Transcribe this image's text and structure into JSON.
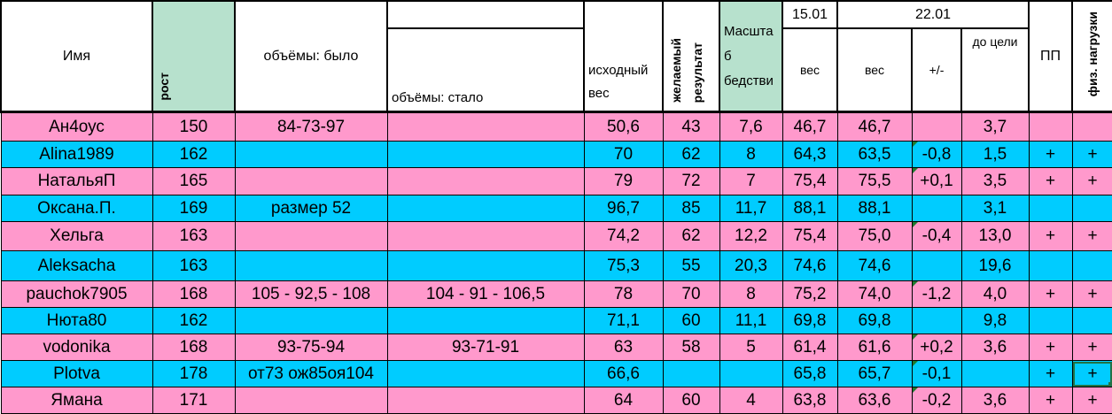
{
  "header": {
    "name": "Имя",
    "height": "рост",
    "volumes_before": "объёмы: было",
    "volumes_after": "объёмы: стало",
    "initial_weight_1": "исходный",
    "initial_weight_2": "вес",
    "desired": "желаемый",
    "result": "результат",
    "scale_1": "Масшта",
    "scale_2": "б",
    "scale_3": "бедстви",
    "date1": "15.01",
    "date2": "22.01",
    "weight1": "вес",
    "weight2": "вес",
    "diff": "+/-",
    "to_goal": "до цели",
    "pp": "ПП",
    "exercise": "физ. нагрузки"
  },
  "colors": {
    "pink": "#ff99cc",
    "blue": "#00ccff",
    "green": "#b7e1cd"
  },
  "rows": [
    {
      "name": "Ан4оус",
      "height": "150",
      "before": "84-73-97",
      "after": "",
      "initial": "50,6",
      "desired": "43",
      "scale": "7,6",
      "w1": "46,7",
      "w2": "46,7",
      "diff": "",
      "goal": "3,7",
      "pp": "",
      "ex": ""
    },
    {
      "name": "Alina1989",
      "height": "162",
      "before": "",
      "after": "",
      "initial": "70",
      "desired": "62",
      "scale": "8",
      "w1": "64,3",
      "w2": "63,5",
      "diff": "-0,8",
      "goal": "1,5",
      "pp": "+",
      "ex": "+"
    },
    {
      "name": "НатальяП",
      "height": "165",
      "before": "",
      "after": "",
      "initial": "79",
      "desired": "72",
      "scale": "7",
      "w1": "75,4",
      "w2": "75,5",
      "diff": "+0,1",
      "goal": "3,5",
      "pp": "+",
      "ex": "+"
    },
    {
      "name": "Оксана.П.",
      "height": "169",
      "before": "размер 52",
      "after": "",
      "initial": "96,7",
      "desired": "85",
      "scale": "11,7",
      "w1": "88,1",
      "w2": "88,1",
      "diff": "",
      "goal": "3,1",
      "pp": "",
      "ex": ""
    },
    {
      "name": "Хельга",
      "height": "163",
      "before": "",
      "after": "",
      "initial": "74,2",
      "desired": "62",
      "scale": "12,2",
      "w1": "75,4",
      "w2": "75,0",
      "diff": "-0,4",
      "goal": "13,0",
      "pp": "+",
      "ex": "+"
    },
    {
      "name": "Aleksacha",
      "height": "163",
      "before": "",
      "after": "",
      "initial": "75,3",
      "desired": "55",
      "scale": "20,3",
      "w1": "74,6",
      "w2": "74,6",
      "diff": "",
      "goal": "19,6",
      "pp": "",
      "ex": ""
    },
    {
      "name": "pauchok7905",
      "height": "168",
      "before": "105 - 92,5 - 108",
      "after": "104 - 91 - 106,5",
      "initial": "78",
      "desired": "70",
      "scale": "8",
      "w1": "75,2",
      "w2": "74,0",
      "diff": "-1,2",
      "goal": "4,0",
      "pp": "+",
      "ex": "+"
    },
    {
      "name": "Нюта80",
      "height": "162",
      "before": "",
      "after": "",
      "initial": "71,1",
      "desired": "60",
      "scale": "11,1",
      "w1": "69,8",
      "w2": "69,8",
      "diff": "",
      "goal": "9,8",
      "pp": "",
      "ex": ""
    },
    {
      "name": "vodonika",
      "height": "168",
      "before": "93-75-94",
      "after": "93-71-91",
      "initial": "63",
      "desired": "58",
      "scale": "5",
      "w1": "61,4",
      "w2": "61,6",
      "diff": "+0,2",
      "goal": "3,6",
      "pp": "+",
      "ex": "+"
    },
    {
      "name": "Plotva",
      "height": "178",
      "before": "от73 ож85оя104",
      "after": "",
      "initial": "66,6",
      "desired": "",
      "scale": "",
      "w1": "65,8",
      "w2": "65,7",
      "diff": "-0,1",
      "goal": "",
      "pp": "+",
      "ex": "+"
    },
    {
      "name": "Ямана",
      "height": "171",
      "before": "",
      "after": "",
      "initial": "64",
      "desired": "60",
      "scale": "4",
      "w1": "63,8",
      "w2": "63,6",
      "diff": "-0,2",
      "goal": "3,6",
      "pp": "+",
      "ex": "+"
    }
  ]
}
